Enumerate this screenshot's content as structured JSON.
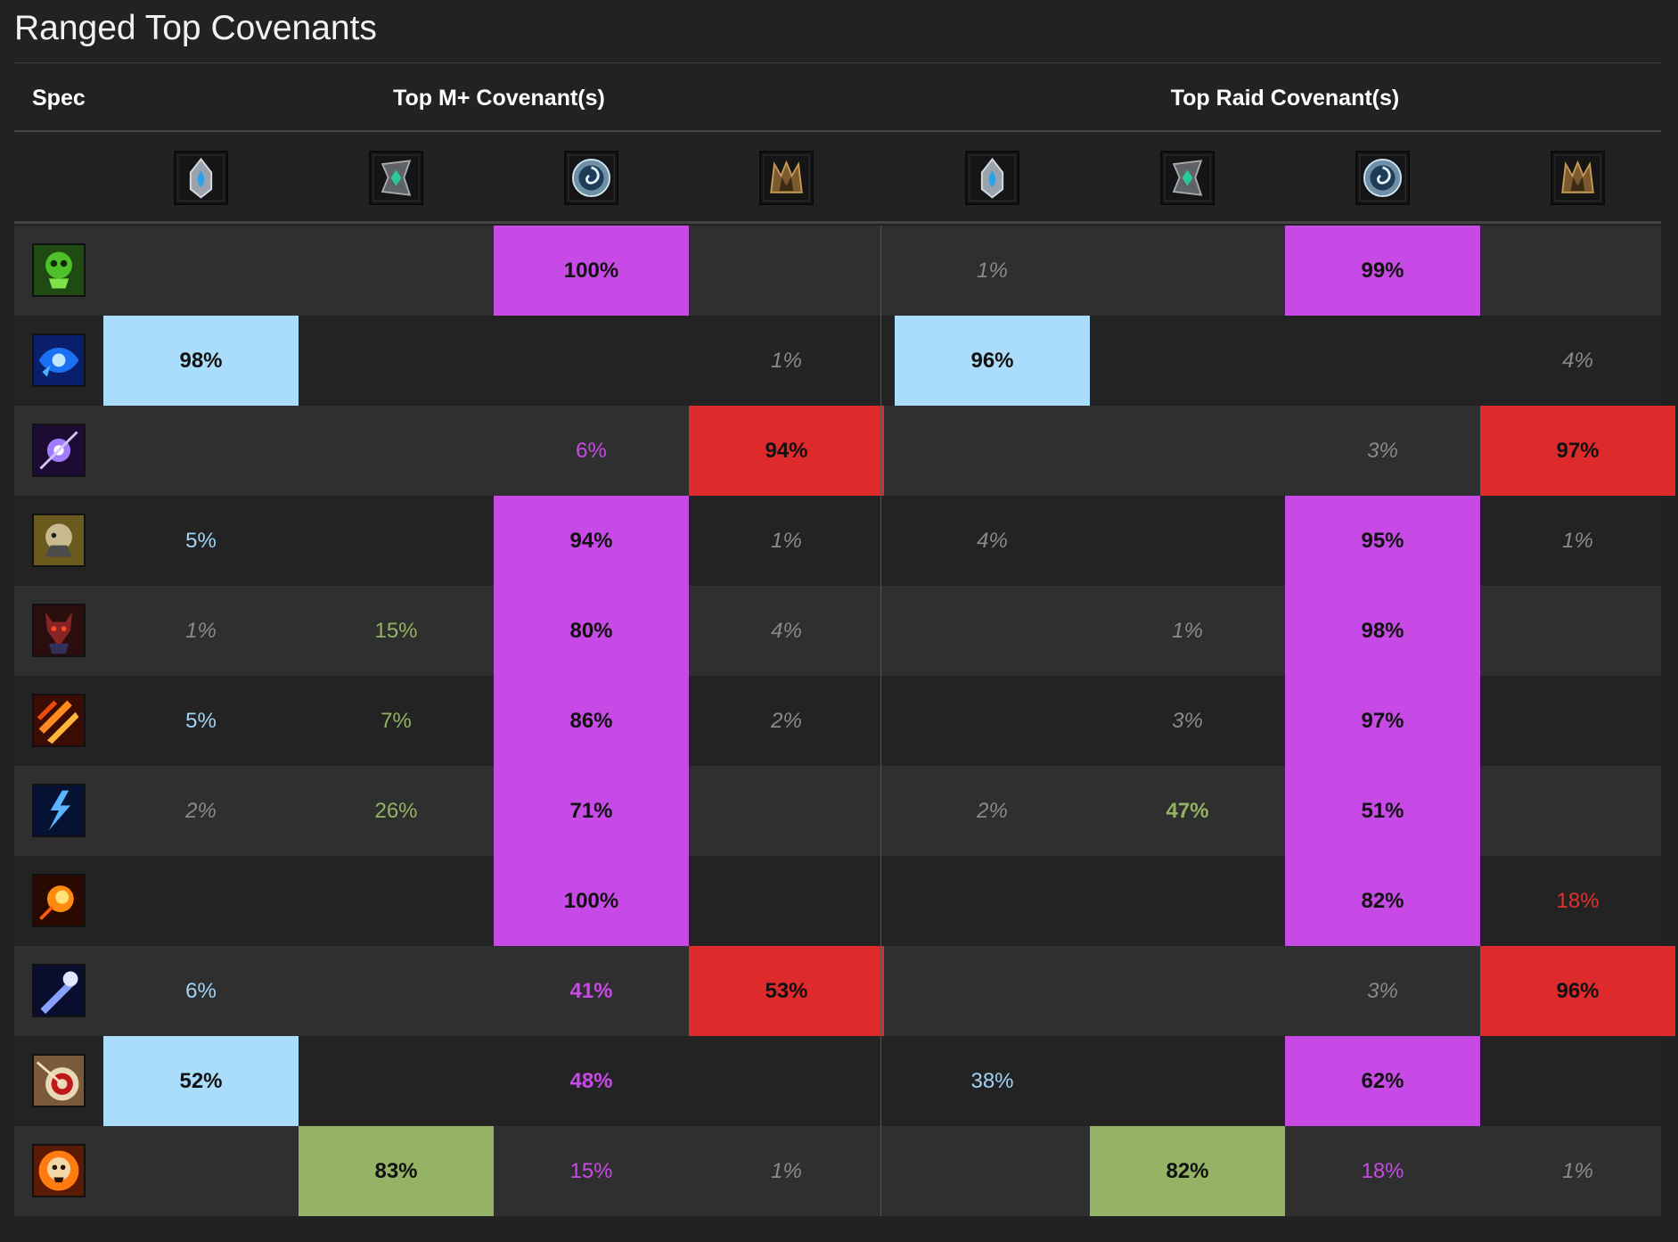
{
  "title": "Ranged Top Covenants",
  "headers": {
    "spec": "Spec",
    "mplus": "Top M+ Covenant(s)",
    "raid": "Top Raid Covenant(s)"
  },
  "covenants": [
    {
      "key": "kyrian",
      "icon": "kyrian-covenant-icon"
    },
    {
      "key": "necrolord",
      "icon": "necrolord-covenant-icon"
    },
    {
      "key": "nightfae",
      "icon": "night-fae-covenant-icon"
    },
    {
      "key": "venthyr",
      "icon": "venthyr-covenant-icon"
    }
  ],
  "colors": {
    "kyrian": "#aadcfb",
    "necrolord": "#95b365",
    "nightfae": "#c74ae6",
    "venthyr": "#de2a2a",
    "minor": "#8a8a8a"
  },
  "rows": [
    {
      "spec_icon": "affliction-warlock-spec-icon",
      "mplus": [
        [
          "",
          ""
        ],
        [
          "",
          ""
        ],
        [
          "100%",
          "top"
        ],
        [
          "",
          ""
        ]
      ],
      "raid": [
        [
          "1%",
          "minor"
        ],
        [
          "",
          ""
        ],
        [
          "99%",
          "top"
        ],
        [
          "",
          ""
        ]
      ]
    },
    {
      "spec_icon": "balance-druid-spec-icon",
      "mplus": [
        [
          "98%",
          "top"
        ],
        [
          "",
          ""
        ],
        [
          "",
          ""
        ],
        [
          "1%",
          "minor"
        ]
      ],
      "raid": [
        [
          "96%",
          "top"
        ],
        [
          "",
          ""
        ],
        [
          "",
          ""
        ],
        [
          "4%",
          "minor"
        ]
      ]
    },
    {
      "spec_icon": "shadow-priest-spec-icon",
      "mplus": [
        [
          "",
          ""
        ],
        [
          "",
          ""
        ],
        [
          "6%",
          "colored"
        ],
        [
          "94%",
          "top"
        ]
      ],
      "raid": [
        [
          "",
          ""
        ],
        [
          "",
          ""
        ],
        [
          "3%",
          "minor"
        ],
        [
          "97%",
          "top"
        ]
      ]
    },
    {
      "spec_icon": "beast-mastery-hunter-spec-icon",
      "mplus": [
        [
          "5%",
          "colored"
        ],
        [
          "",
          ""
        ],
        [
          "94%",
          "top"
        ],
        [
          "1%",
          "minor"
        ]
      ],
      "raid": [
        [
          "4%",
          "minor"
        ],
        [
          "",
          ""
        ],
        [
          "95%",
          "top"
        ],
        [
          "1%",
          "minor"
        ]
      ]
    },
    {
      "spec_icon": "demonology-warlock-spec-icon",
      "mplus": [
        [
          "1%",
          "minor"
        ],
        [
          "15%",
          "colored"
        ],
        [
          "80%",
          "top"
        ],
        [
          "4%",
          "minor"
        ]
      ],
      "raid": [
        [
          "",
          ""
        ],
        [
          "1%",
          "minor"
        ],
        [
          "98%",
          "top"
        ],
        [
          "",
          ""
        ]
      ]
    },
    {
      "spec_icon": "fire-mage-spec-icon",
      "mplus": [
        [
          "5%",
          "colored"
        ],
        [
          "7%",
          "colored"
        ],
        [
          "86%",
          "top"
        ],
        [
          "2%",
          "minor"
        ]
      ],
      "raid": [
        [
          "",
          ""
        ],
        [
          "3%",
          "minor"
        ],
        [
          "97%",
          "top"
        ],
        [
          "",
          ""
        ]
      ]
    },
    {
      "spec_icon": "elemental-shaman-spec-icon",
      "mplus": [
        [
          "2%",
          "minor"
        ],
        [
          "26%",
          "colored"
        ],
        [
          "71%",
          "top"
        ],
        [
          "",
          ""
        ]
      ],
      "raid": [
        [
          "2%",
          "minor"
        ],
        [
          "47%",
          "colored-bold"
        ],
        [
          "51%",
          "top"
        ],
        [
          "",
          ""
        ]
      ]
    },
    {
      "spec_icon": "destruction-warlock-spec-icon",
      "mplus": [
        [
          "",
          ""
        ],
        [
          "",
          ""
        ],
        [
          "100%",
          "top"
        ],
        [
          "",
          ""
        ]
      ],
      "raid": [
        [
          "",
          ""
        ],
        [
          "",
          ""
        ],
        [
          "82%",
          "top"
        ],
        [
          "18%",
          "colored"
        ]
      ]
    },
    {
      "spec_icon": "frost-mage-spec-icon",
      "mplus": [
        [
          "6%",
          "colored"
        ],
        [
          "",
          ""
        ],
        [
          "41%",
          "colored-bold"
        ],
        [
          "53%",
          "top"
        ]
      ],
      "raid": [
        [
          "",
          ""
        ],
        [
          "",
          ""
        ],
        [
          "3%",
          "minor"
        ],
        [
          "96%",
          "top"
        ]
      ]
    },
    {
      "spec_icon": "marksmanship-hunter-spec-icon",
      "mplus": [
        [
          "52%",
          "top"
        ],
        [
          "",
          ""
        ],
        [
          "48%",
          "colored-bold"
        ],
        [
          "",
          ""
        ]
      ],
      "raid": [
        [
          "38%",
          "colored"
        ],
        [
          "",
          ""
        ],
        [
          "62%",
          "top"
        ],
        [
          "",
          ""
        ]
      ]
    },
    {
      "spec_icon": "arcane-mage-spec-icon",
      "mplus": [
        [
          "",
          ""
        ],
        [
          "83%",
          "top"
        ],
        [
          "15%",
          "colored"
        ],
        [
          "1%",
          "minor"
        ]
      ],
      "raid": [
        [
          "",
          ""
        ],
        [
          "82%",
          "top"
        ],
        [
          "18%",
          "colored"
        ],
        [
          "1%",
          "minor"
        ]
      ]
    }
  ]
}
